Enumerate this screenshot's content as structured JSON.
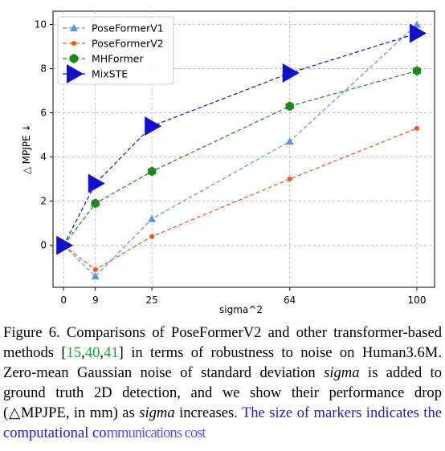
{
  "chart_data": {
    "type": "line",
    "x": [
      0,
      9,
      25,
      64,
      100
    ],
    "xticks": [
      "0",
      "9",
      "25",
      "64",
      "100"
    ],
    "xlabel": "sigma^2",
    "ylabel": "△ MPJPE ↓",
    "yticks": [
      "0",
      "2",
      "4",
      "6",
      "8",
      "10"
    ],
    "xlim": [
      -3,
      105
    ],
    "ylim": [
      -1.9,
      10.6
    ],
    "grid": true,
    "legend_position": "top-left",
    "series": [
      {
        "name": "PoseFormerV1",
        "values": [
          0,
          -1.4,
          1.2,
          4.7,
          10.0
        ],
        "color": "#5f93d9",
        "marker": "triangle-up",
        "marker_size": 5
      },
      {
        "name": "PoseFormerV2",
        "values": [
          0,
          -1.1,
          0.4,
          3.0,
          5.3
        ],
        "color": "#f0551c",
        "marker": "circle",
        "marker_size": 3
      },
      {
        "name": "MHFormer",
        "values": [
          0,
          1.9,
          3.35,
          6.3,
          7.9
        ],
        "color": "#1a8a1a",
        "marker": "hexagon",
        "marker_size": 6
      },
      {
        "name": "MixSTE",
        "values": [
          0,
          2.8,
          5.4,
          7.8,
          9.6
        ],
        "color": "#1111cc",
        "marker": "triangle-right",
        "marker_size": 12
      }
    ]
  },
  "caption": {
    "part1": "Figure 6. Comparisons of PoseFormerV2 and other transformer-based methods [",
    "ref1": "15",
    "comma1": ",",
    "ref2": "40",
    "comma2": ",",
    "ref3": "41",
    "part2": "] in terms of robustness to noise on Human3.6M. Zero-mean Gaussian noise of standard deviation ",
    "sym1": "sigma",
    "part3": " is added to ground truth 2D detection, and we show their performance drop (△MPJPE, in mm) as ",
    "sym2": "sigma",
    "part4": " increases. ",
    "highlight": "The size of markers indicates the computational co",
    "truncated": "mmunications cost"
  }
}
